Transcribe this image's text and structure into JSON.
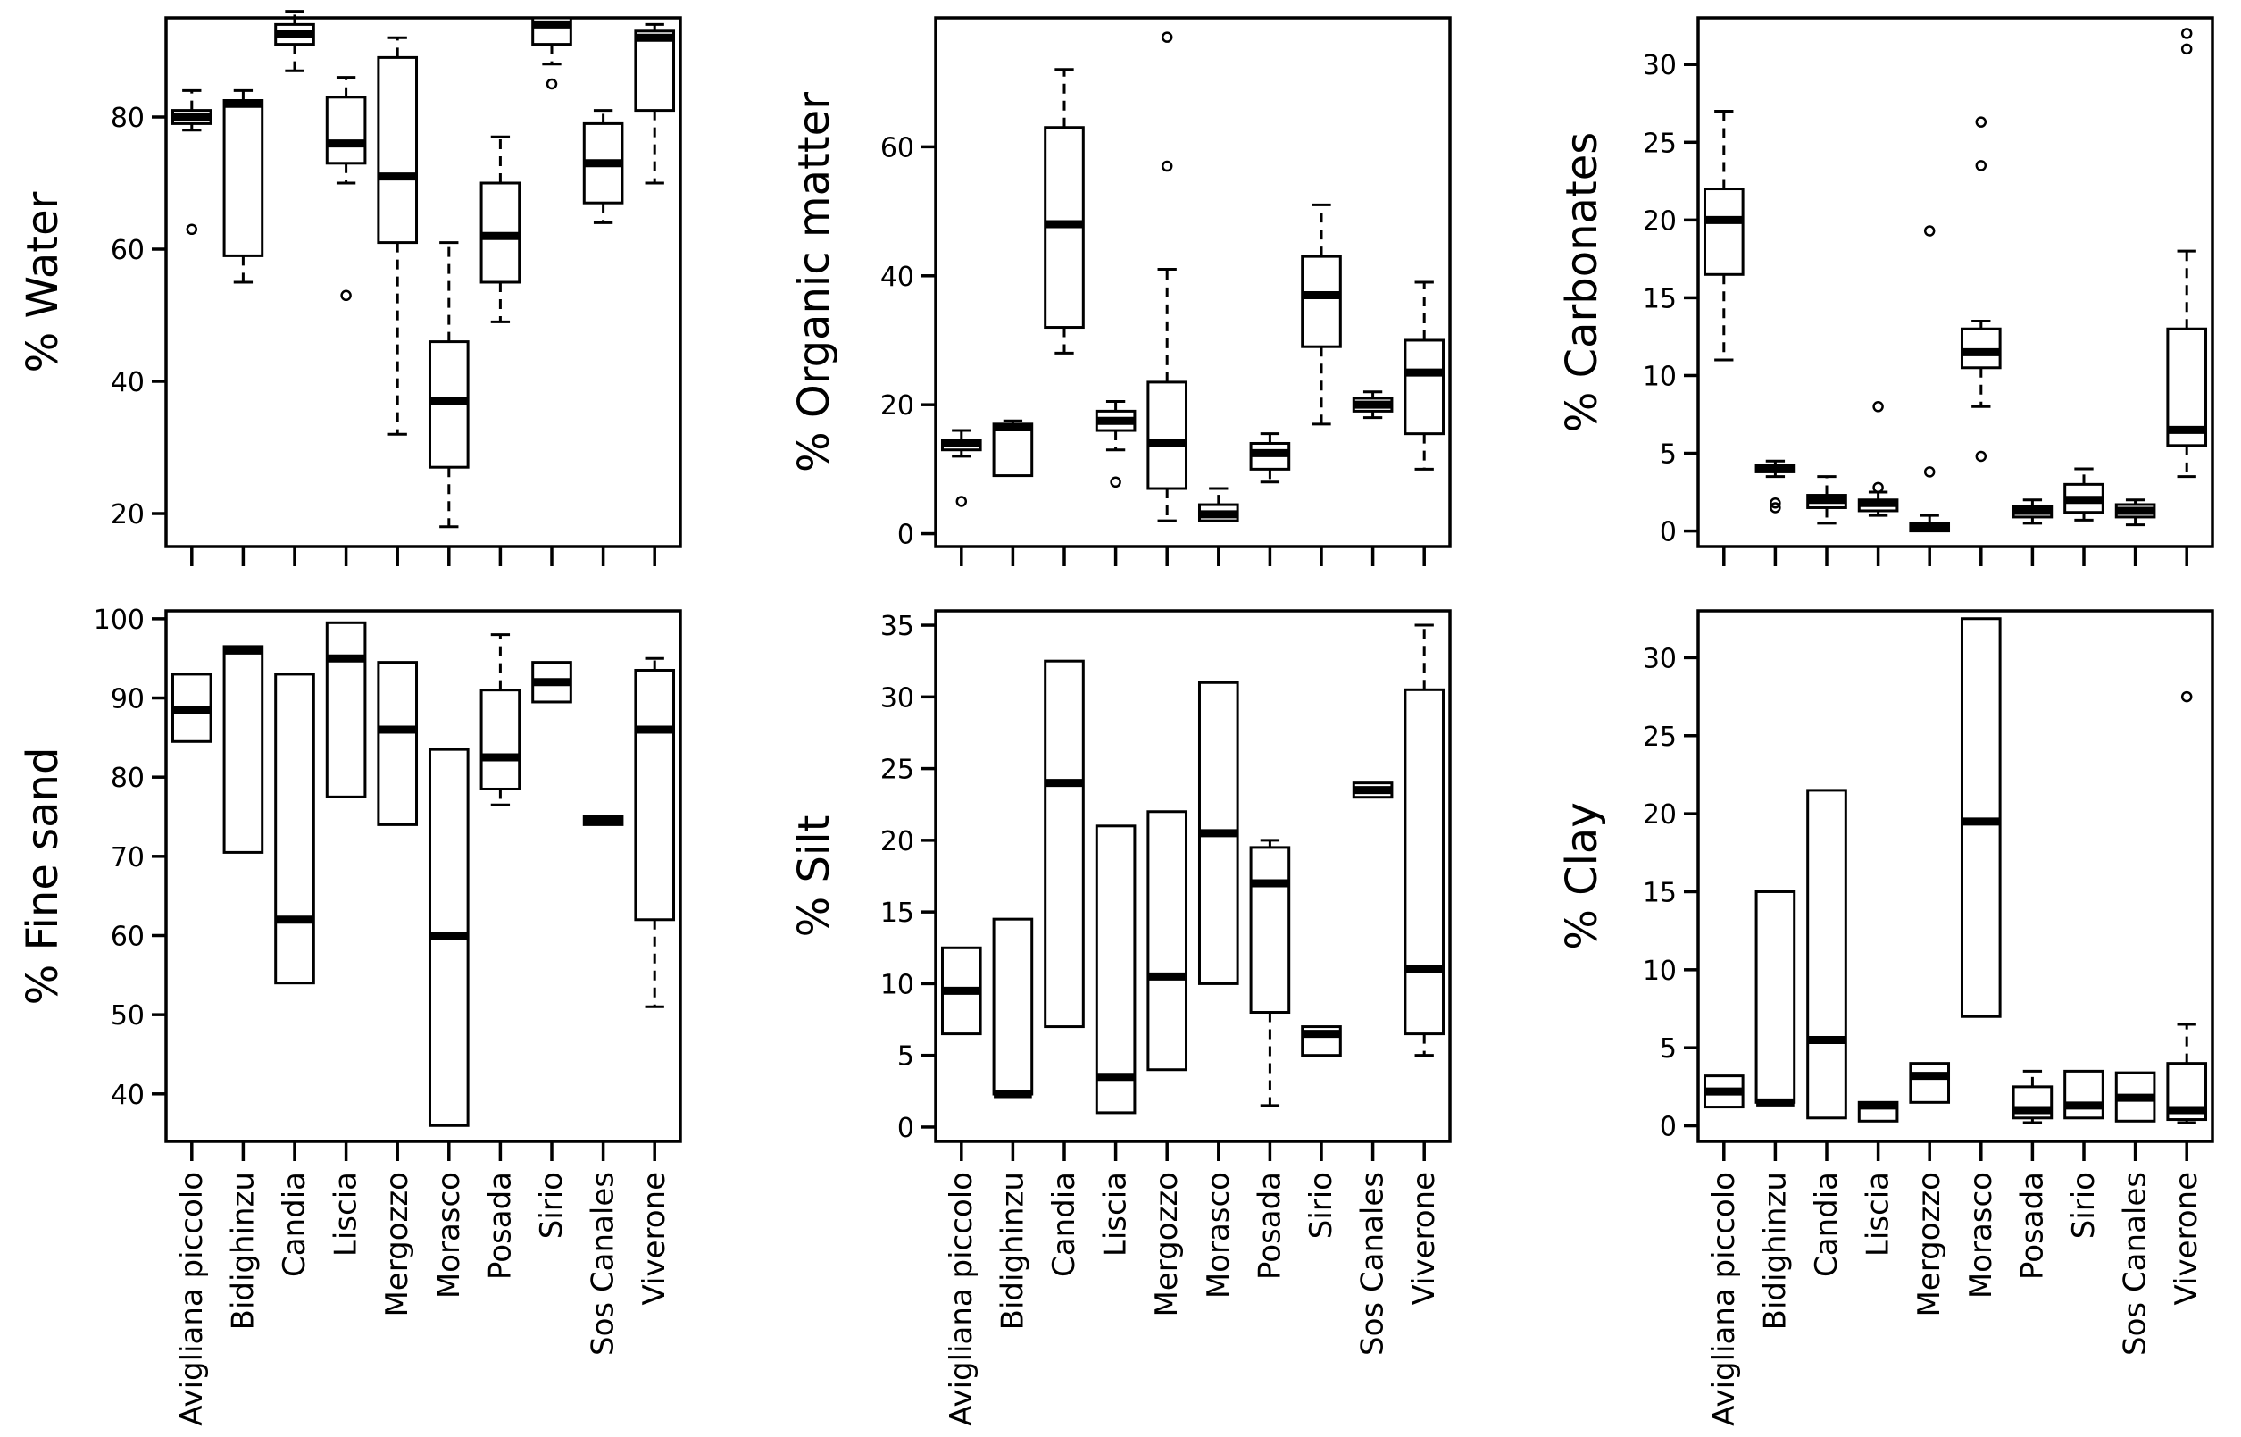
{
  "chart_data": [
    {
      "type": "boxplot",
      "ylabel": "% Water",
      "ylim": [
        15,
        95
      ],
      "yticks": [
        20,
        40,
        60,
        80
      ],
      "categories": [
        "Avigliana piccolo",
        "Bidighinzu",
        "Candia",
        "Liscia",
        "Mergozzo",
        "Morasco",
        "Posada",
        "Sirio",
        "Sos Canales",
        "Viverone"
      ],
      "show_category_labels": false,
      "boxes": [
        {
          "whisker_low": 78,
          "q1": 79,
          "median": 80,
          "q3": 81,
          "whisker_high": 84,
          "outliers": [
            63
          ]
        },
        {
          "whisker_low": 55,
          "q1": 59,
          "median": 82,
          "q3": 82.5,
          "whisker_high": 84,
          "outliers": []
        },
        {
          "whisker_low": 87,
          "q1": 91,
          "median": 92.5,
          "q3": 94,
          "whisker_high": 96,
          "outliers": []
        },
        {
          "whisker_low": 70,
          "q1": 73,
          "median": 76,
          "q3": 83,
          "whisker_high": 86,
          "outliers": [
            53
          ]
        },
        {
          "whisker_low": 32,
          "q1": 61,
          "median": 71,
          "q3": 89,
          "whisker_high": 92,
          "outliers": []
        },
        {
          "whisker_low": 18,
          "q1": 27,
          "median": 37,
          "q3": 46,
          "whisker_high": 61,
          "outliers": []
        },
        {
          "whisker_low": 49,
          "q1": 55,
          "median": 62,
          "q3": 70,
          "whisker_high": 77,
          "outliers": []
        },
        {
          "whisker_low": 88,
          "q1": 91,
          "median": 94,
          "q3": 95,
          "whisker_high": 95,
          "outliers": [
            85
          ]
        },
        {
          "whisker_low": 64,
          "q1": 67,
          "median": 73,
          "q3": 79,
          "whisker_high": 81,
          "outliers": []
        },
        {
          "whisker_low": 70,
          "q1": 81,
          "median": 92,
          "q3": 93,
          "whisker_high": 94,
          "outliers": []
        }
      ]
    },
    {
      "type": "boxplot",
      "ylabel": "% Organic matter",
      "ylim": [
        -2,
        80
      ],
      "yticks": [
        0,
        20,
        40,
        60
      ],
      "categories": [
        "Avigliana piccolo",
        "Bidighinzu",
        "Candia",
        "Liscia",
        "Mergozzo",
        "Morasco",
        "Posada",
        "Sirio",
        "Sos Canales",
        "Viverone"
      ],
      "show_category_labels": false,
      "boxes": [
        {
          "whisker_low": 12,
          "q1": 13,
          "median": 14,
          "q3": 14.5,
          "whisker_high": 16,
          "outliers": [
            5
          ]
        },
        {
          "whisker_low": 9,
          "q1": 9,
          "median": 16.5,
          "q3": 17,
          "whisker_high": 17.5,
          "outliers": []
        },
        {
          "whisker_low": 28,
          "q1": 32,
          "median": 48,
          "q3": 63,
          "whisker_high": 72,
          "outliers": []
        },
        {
          "whisker_low": 13,
          "q1": 16,
          "median": 17.5,
          "q3": 19,
          "whisker_high": 20.5,
          "outliers": [
            8
          ]
        },
        {
          "whisker_low": 2,
          "q1": 7,
          "median": 14,
          "q3": 23.5,
          "whisker_high": 41,
          "outliers": [
            57,
            77
          ]
        },
        {
          "whisker_low": 2,
          "q1": 2,
          "median": 3,
          "q3": 4.5,
          "whisker_high": 7,
          "outliers": []
        },
        {
          "whisker_low": 8,
          "q1": 10,
          "median": 12.5,
          "q3": 14,
          "whisker_high": 15.5,
          "outliers": []
        },
        {
          "whisker_low": 17,
          "q1": 29,
          "median": 37,
          "q3": 43,
          "whisker_high": 51,
          "outliers": []
        },
        {
          "whisker_low": 18,
          "q1": 19,
          "median": 20,
          "q3": 21,
          "whisker_high": 22,
          "outliers": []
        },
        {
          "whisker_low": 10,
          "q1": 15.5,
          "median": 25,
          "q3": 30,
          "whisker_high": 39,
          "outliers": []
        }
      ]
    },
    {
      "type": "boxplot",
      "ylabel": "% Carbonates",
      "ylim": [
        -1,
        33
      ],
      "yticks": [
        0,
        5,
        10,
        15,
        20,
        25,
        30
      ],
      "categories": [
        "Avigliana piccolo",
        "Bidighinzu",
        "Candia",
        "Liscia",
        "Mergozzo",
        "Morasco",
        "Posada",
        "Sirio",
        "Sos Canales",
        "Viverone"
      ],
      "show_category_labels": false,
      "boxes": [
        {
          "whisker_low": 11,
          "q1": 16.5,
          "median": 20,
          "q3": 22,
          "whisker_high": 27,
          "outliers": []
        },
        {
          "whisker_low": 3.5,
          "q1": 3.8,
          "median": 4,
          "q3": 4.2,
          "whisker_high": 4.5,
          "outliers": [
            1.5,
            1.8
          ]
        },
        {
          "whisker_low": 0.5,
          "q1": 1.5,
          "median": 2,
          "q3": 2.3,
          "whisker_high": 3.5,
          "outliers": []
        },
        {
          "whisker_low": 1,
          "q1": 1.3,
          "median": 1.8,
          "q3": 2,
          "whisker_high": 2.5,
          "outliers": [
            2.8,
            8
          ]
        },
        {
          "whisker_low": 0,
          "q1": 0,
          "median": 0.3,
          "q3": 0.5,
          "whisker_high": 1,
          "outliers": [
            3.8,
            19.3
          ]
        },
        {
          "whisker_low": 8,
          "q1": 10.5,
          "median": 11.5,
          "q3": 13,
          "whisker_high": 13.5,
          "outliers": [
            4.8,
            23.5,
            26.3
          ]
        },
        {
          "whisker_low": 0.5,
          "q1": 0.9,
          "median": 1.3,
          "q3": 1.6,
          "whisker_high": 2,
          "outliers": []
        },
        {
          "whisker_low": 0.7,
          "q1": 1.2,
          "median": 2,
          "q3": 3,
          "whisker_high": 4,
          "outliers": []
        },
        {
          "whisker_low": 0.4,
          "q1": 0.9,
          "median": 1.3,
          "q3": 1.7,
          "whisker_high": 2,
          "outliers": []
        },
        {
          "whisker_low": 3.5,
          "q1": 5.5,
          "median": 6.5,
          "q3": 13,
          "whisker_high": 18,
          "outliers": [
            31,
            32
          ]
        }
      ]
    },
    {
      "type": "boxplot",
      "ylabel": "% Fine sand",
      "ylim": [
        34,
        101
      ],
      "yticks": [
        40,
        50,
        60,
        70,
        80,
        90,
        100
      ],
      "categories": [
        "Avigliana piccolo",
        "Bidighinzu",
        "Candia",
        "Liscia",
        "Mergozzo",
        "Morasco",
        "Posada",
        "Sirio",
        "Sos Canales",
        "Viverone"
      ],
      "show_category_labels": true,
      "boxes": [
        {
          "whisker_low": 84.5,
          "q1": 84.5,
          "median": 88.5,
          "q3": 93,
          "whisker_high": 93,
          "outliers": []
        },
        {
          "whisker_low": 70.5,
          "q1": 70.5,
          "median": 96,
          "q3": 96.5,
          "whisker_high": 96.5,
          "outliers": []
        },
        {
          "whisker_low": 54,
          "q1": 54,
          "median": 62,
          "q3": 93,
          "whisker_high": 93,
          "outliers": []
        },
        {
          "whisker_low": 77.5,
          "q1": 77.5,
          "median": 95,
          "q3": 99.5,
          "whisker_high": 99.5,
          "outliers": []
        },
        {
          "whisker_low": 74,
          "q1": 74,
          "median": 86,
          "q3": 94.5,
          "whisker_high": 94.5,
          "outliers": []
        },
        {
          "whisker_low": 36,
          "q1": 36,
          "median": 60,
          "q3": 83.5,
          "whisker_high": 83.5,
          "outliers": []
        },
        {
          "whisker_low": 76.5,
          "q1": 78.5,
          "median": 82.5,
          "q3": 91,
          "whisker_high": 98,
          "outliers": []
        },
        {
          "whisker_low": 89.5,
          "q1": 89.5,
          "median": 92,
          "q3": 94.5,
          "whisker_high": 94.5,
          "outliers": []
        },
        {
          "whisker_low": 74,
          "q1": 74,
          "median": 74.5,
          "q3": 75,
          "whisker_high": 75,
          "outliers": []
        },
        {
          "whisker_low": 51,
          "q1": 62,
          "median": 86,
          "q3": 93.5,
          "whisker_high": 95,
          "outliers": []
        }
      ]
    },
    {
      "type": "boxplot",
      "ylabel": "% Silt",
      "ylim": [
        -1,
        36
      ],
      "yticks": [
        0,
        5,
        10,
        15,
        20,
        25,
        30,
        35
      ],
      "categories": [
        "Avigliana piccolo",
        "Bidighinzu",
        "Candia",
        "Liscia",
        "Mergozzo",
        "Morasco",
        "Posada",
        "Sirio",
        "Sos Canales",
        "Viverone"
      ],
      "show_category_labels": true,
      "boxes": [
        {
          "whisker_low": 6.5,
          "q1": 6.5,
          "median": 9.5,
          "q3": 12.5,
          "whisker_high": 12.5,
          "outliers": []
        },
        {
          "whisker_low": 2.3,
          "q1": 2.3,
          "median": 2.3,
          "q3": 14.5,
          "whisker_high": 14.5,
          "outliers": []
        },
        {
          "whisker_low": 7,
          "q1": 7,
          "median": 24,
          "q3": 32.5,
          "whisker_high": 32.5,
          "outliers": []
        },
        {
          "whisker_low": 1,
          "q1": 1,
          "median": 3.5,
          "q3": 21,
          "whisker_high": 21,
          "outliers": []
        },
        {
          "whisker_low": 4,
          "q1": 4,
          "median": 10.5,
          "q3": 22,
          "whisker_high": 22,
          "outliers": []
        },
        {
          "whisker_low": 10,
          "q1": 10,
          "median": 20.5,
          "q3": 31,
          "whisker_high": 31,
          "outliers": []
        },
        {
          "whisker_low": 1.5,
          "q1": 8,
          "median": 17,
          "q3": 19.5,
          "whisker_high": 20,
          "outliers": []
        },
        {
          "whisker_low": 5,
          "q1": 5,
          "median": 6.5,
          "q3": 7,
          "whisker_high": 7,
          "outliers": []
        },
        {
          "whisker_low": 23,
          "q1": 23,
          "median": 23.5,
          "q3": 24,
          "whisker_high": 24,
          "outliers": []
        },
        {
          "whisker_low": 5,
          "q1": 6.5,
          "median": 11,
          "q3": 30.5,
          "whisker_high": 35,
          "outliers": []
        }
      ]
    },
    {
      "type": "boxplot",
      "ylabel": "% Clay",
      "ylim": [
        -1,
        33
      ],
      "yticks": [
        0,
        5,
        10,
        15,
        20,
        25,
        30
      ],
      "categories": [
        "Avigliana piccolo",
        "Bidighinzu",
        "Candia",
        "Liscia",
        "Mergozzo",
        "Morasco",
        "Posada",
        "Sirio",
        "Sos Canales",
        "Viverone"
      ],
      "show_category_labels": true,
      "boxes": [
        {
          "whisker_low": 1.2,
          "q1": 1.2,
          "median": 2.2,
          "q3": 3.2,
          "whisker_high": 3.2,
          "outliers": []
        },
        {
          "whisker_low": 1.5,
          "q1": 1.5,
          "median": 1.5,
          "q3": 15,
          "whisker_high": 15,
          "outliers": []
        },
        {
          "whisker_low": 0.5,
          "q1": 0.5,
          "median": 5.5,
          "q3": 21.5,
          "whisker_high": 21.5,
          "outliers": []
        },
        {
          "whisker_low": 0.3,
          "q1": 0.3,
          "median": 1.3,
          "q3": 1.5,
          "whisker_high": 1.5,
          "outliers": []
        },
        {
          "whisker_low": 1.5,
          "q1": 1.5,
          "median": 3.2,
          "q3": 4,
          "whisker_high": 4,
          "outliers": []
        },
        {
          "whisker_low": 7,
          "q1": 7,
          "median": 19.5,
          "q3": 32.5,
          "whisker_high": 32.5,
          "outliers": []
        },
        {
          "whisker_low": 0.2,
          "q1": 0.5,
          "median": 1,
          "q3": 2.5,
          "whisker_high": 3.5,
          "outliers": []
        },
        {
          "whisker_low": 0.5,
          "q1": 0.5,
          "median": 1.3,
          "q3": 3.5,
          "whisker_high": 3.5,
          "outliers": []
        },
        {
          "whisker_low": 0.3,
          "q1": 0.3,
          "median": 1.8,
          "q3": 3.4,
          "whisker_high": 3.4,
          "outliers": []
        },
        {
          "whisker_low": 0.2,
          "q1": 0.4,
          "median": 1,
          "q3": 4,
          "whisker_high": 6.5,
          "outliers": [
            27.5
          ]
        }
      ]
    }
  ]
}
